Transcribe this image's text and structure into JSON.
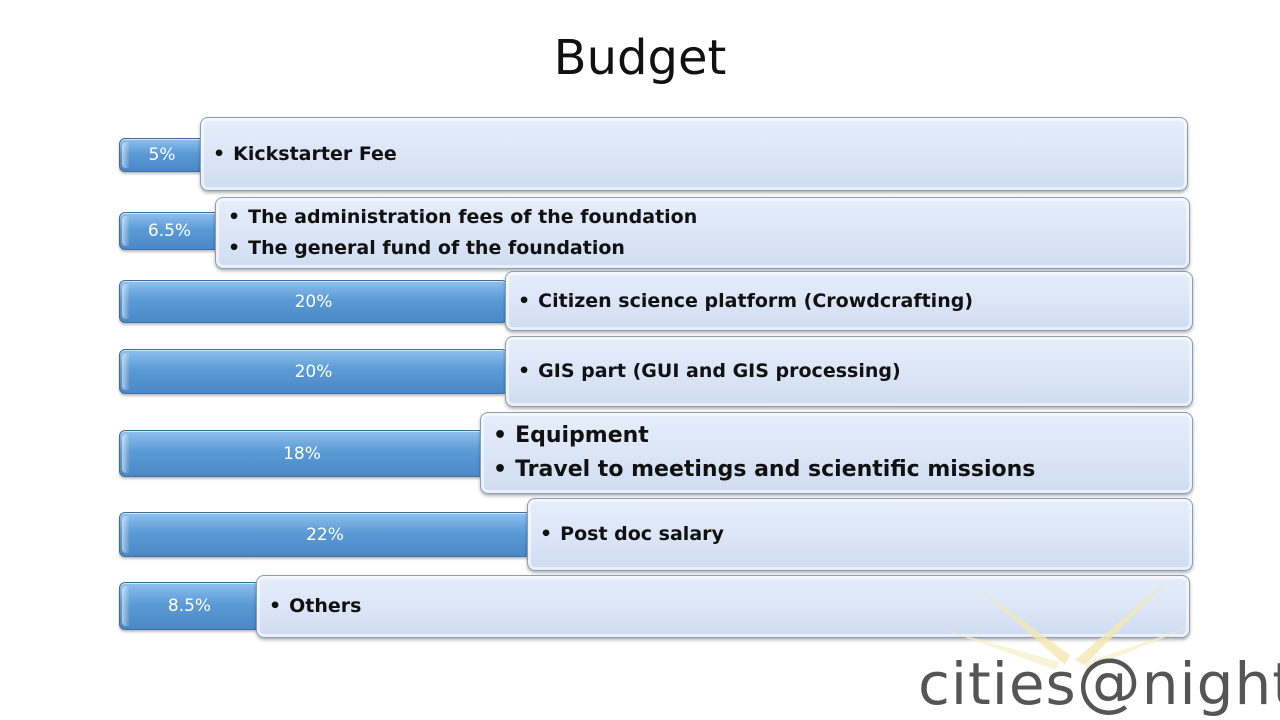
{
  "title": "Budget",
  "rows": [
    {
      "percent": "5%",
      "items": [
        "Kickstarter Fee"
      ]
    },
    {
      "percent": "6.5%",
      "items": [
        "The administration fees of the foundation",
        "The general fund of the foundation"
      ]
    },
    {
      "percent": "20%",
      "items": [
        "Citizen science platform (Crowdcrafting)"
      ]
    },
    {
      "percent": "20%",
      "items": [
        "GIS part (GUI and GIS processing)"
      ]
    },
    {
      "percent": "18%",
      "items": [
        "Equipment",
        "Travel to meetings and scientific missions"
      ]
    },
    {
      "percent": "22%",
      "items": [
        "Post doc salary"
      ]
    },
    {
      "percent": "8.5%",
      "items": [
        "Others"
      ]
    }
  ],
  "logo": {
    "text": "cities@night",
    "left": "cities",
    "at": "@",
    "right": "night"
  },
  "colors": {
    "bar": "#5b9bd5",
    "box": "#dce6f4",
    "logo": "#555555",
    "logo_rays": "#f3e9b0"
  }
}
